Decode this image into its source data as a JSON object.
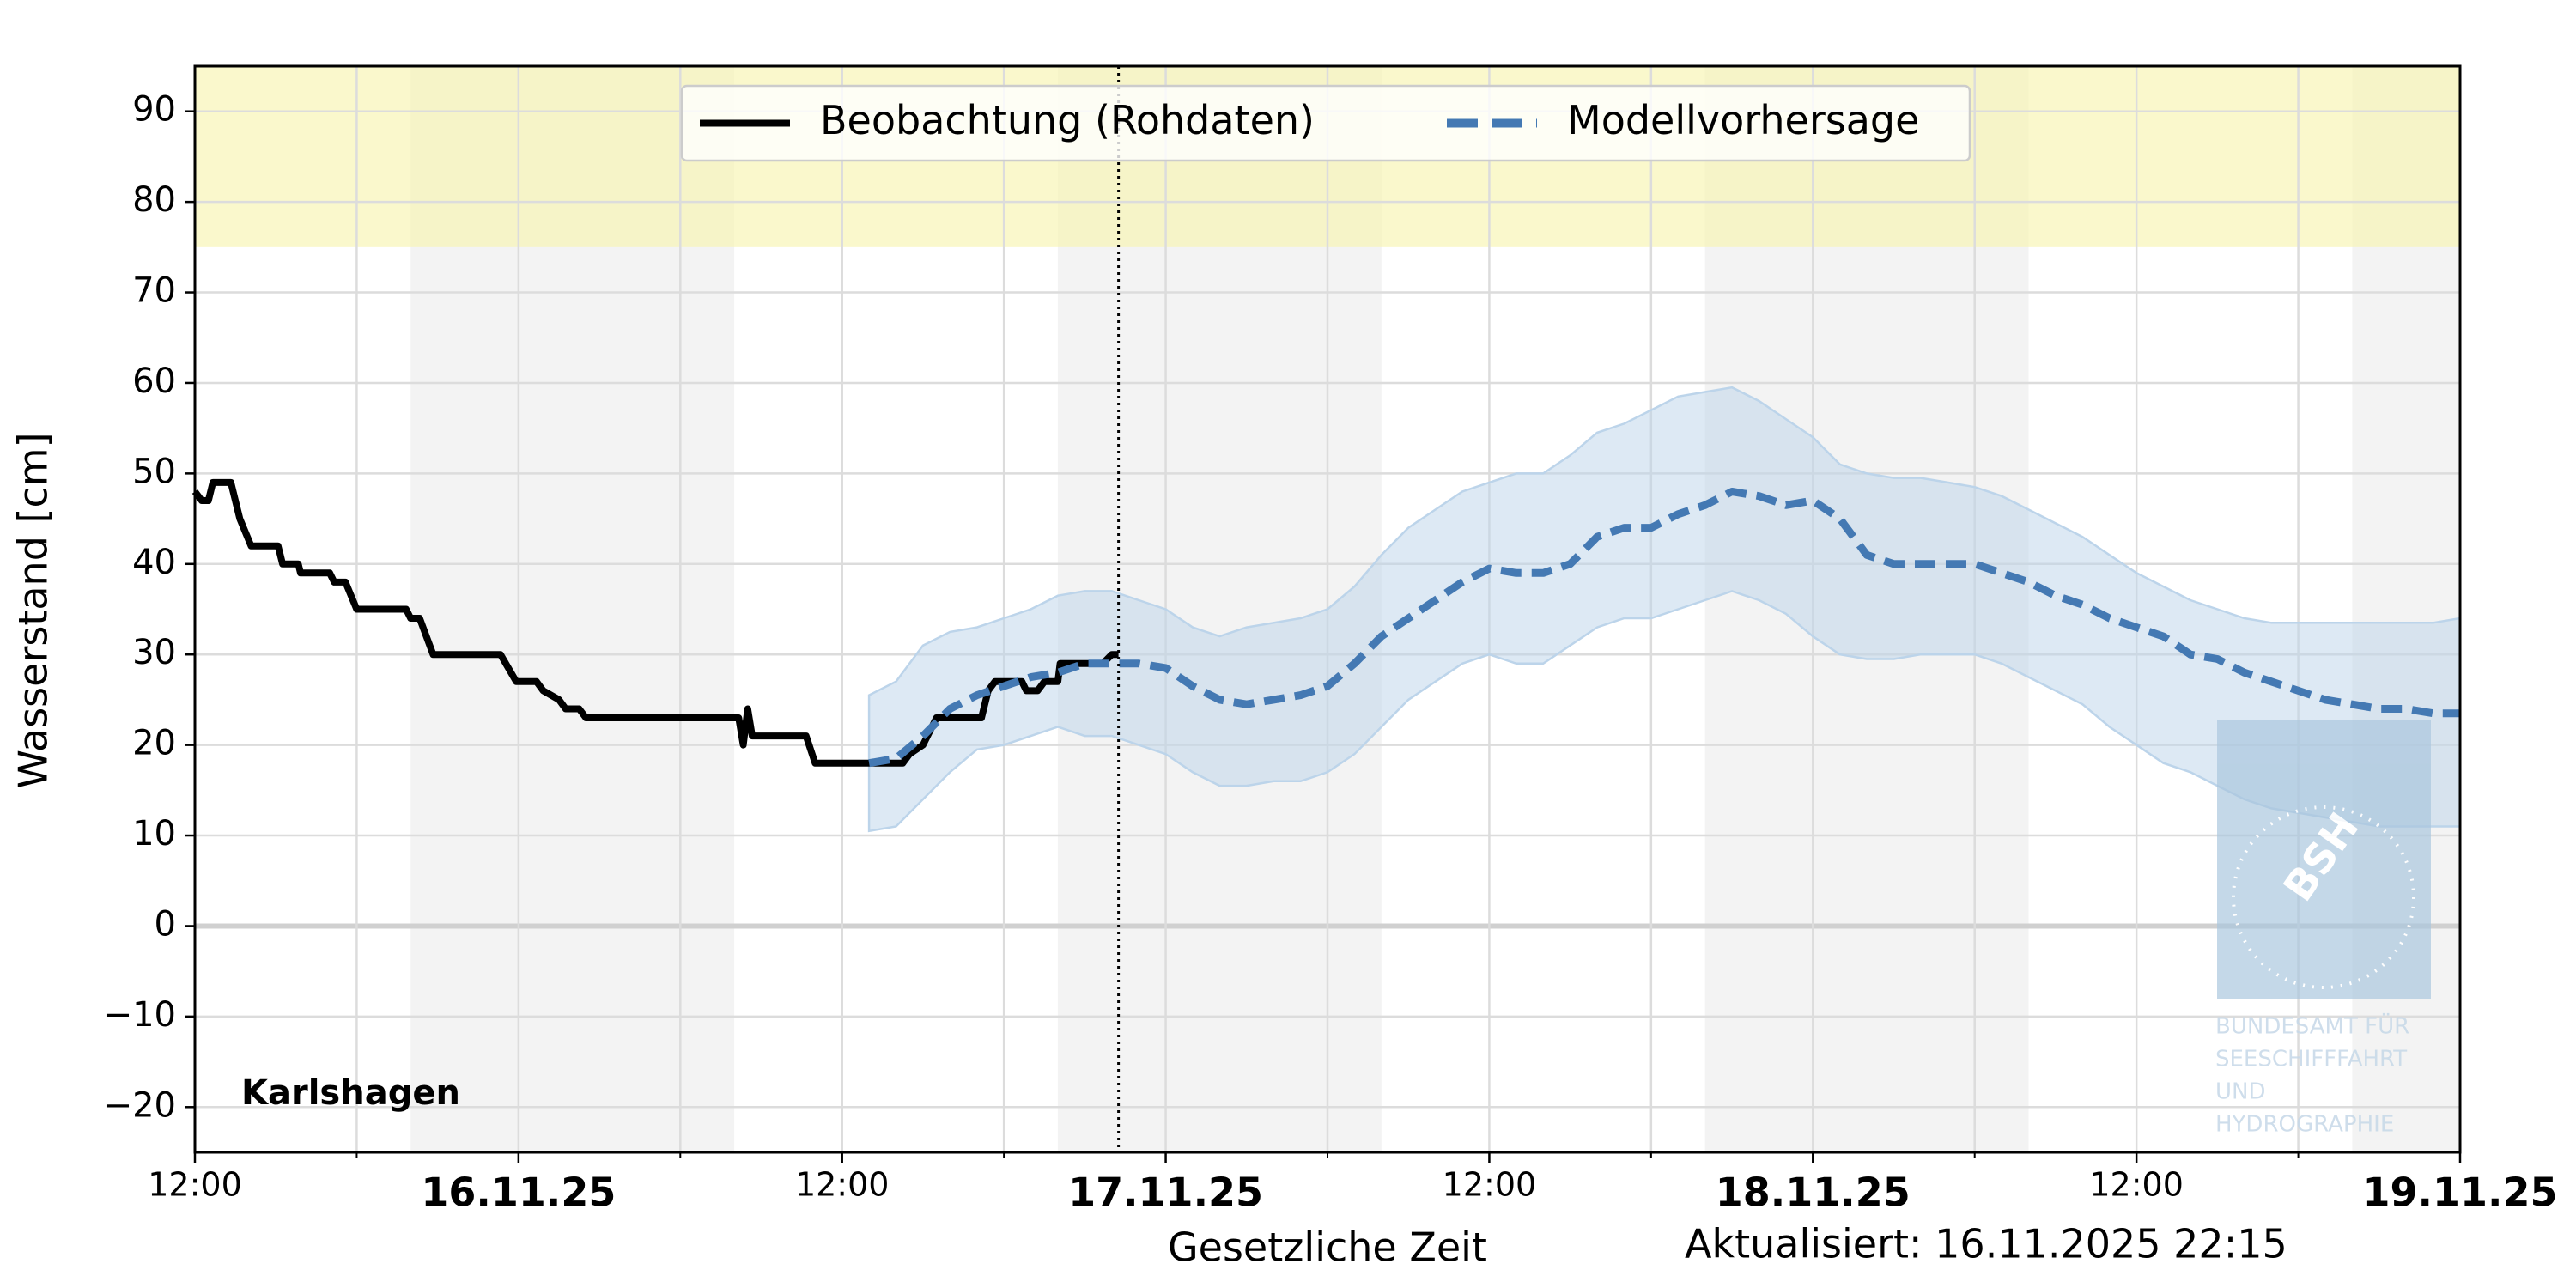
{
  "chart_data": {
    "type": "line",
    "station": "Karlshagen",
    "ylabel": "Wasserstand [cm]",
    "xlabel": "Gesetzliche Zeit",
    "updated": "Aktualisiert: 16.11.2025 22:15",
    "now": "2025-11-16T22:15",
    "ylim": [
      -25,
      95
    ],
    "yticks": [
      {
        "value": -20,
        "label": "−20"
      },
      {
        "value": -10,
        "label": "−10"
      },
      0,
      10,
      20,
      30,
      40,
      50,
      60,
      70,
      80,
      90
    ],
    "xlim": [
      "2025-11-15T12:00",
      "2025-11-19T00:00"
    ],
    "xticks": [
      {
        "value": "2025-11-15T12:00",
        "label": "12:00"
      },
      {
        "value": "2025-11-16T00:00",
        "label": "16.11.25"
      },
      {
        "value": "2025-11-16T12:00",
        "label": "12:00"
      },
      {
        "value": "2025-11-17T00:00",
        "label": "17.11.25"
      },
      {
        "value": "2025-11-17T12:00",
        "label": "12:00"
      },
      {
        "value": "2025-11-18T00:00",
        "label": "18.11.25"
      },
      {
        "value": "2025-11-18T12:00",
        "label": "12:00"
      },
      {
        "value": "2025-11-19T00:00",
        "label": "19.11.25"
      }
    ],
    "xminorticks": [
      "2025-11-15T18:00",
      "2025-11-16T06:00",
      "2025-11-16T18:00",
      "2025-11-17T06:00",
      "2025-11-17T18:00",
      "2025-11-18T06:00",
      "2025-11-18T18:00"
    ],
    "grid": true,
    "legend": "top",
    "highlight_band": {
      "from": 75,
      "to": 95,
      "color": "#f7f5b0"
    },
    "shaded_periods": {
      "color": "#f3f3f3",
      "periods": [
        [
          "2025-11-15T20:00",
          "2025-11-16T08:00"
        ],
        [
          "2025-11-16T20:00",
          "2025-11-17T08:00"
        ],
        [
          "2025-11-17T20:00",
          "2025-11-18T08:00"
        ],
        [
          "2025-11-18T20:00",
          "2025-11-19T00:00"
        ]
      ]
    },
    "logo": {
      "abbr": "BSH",
      "lines": [
        "BUNDESAMT FÜR",
        "SEESCHIFFFAHRT",
        "UND",
        "HYDROGRAPHIE"
      ]
    },
    "series": [
      {
        "name": "Beobachtung (Rohdaten)",
        "color": "#000000",
        "style": "solid",
        "x": [
          "2025-11-15T12:00",
          "2025-11-15T12:15",
          "2025-11-15T12:30",
          "2025-11-15T12:40",
          "2025-11-15T13:20",
          "2025-11-15T13:40",
          "2025-11-15T14:05",
          "2025-11-15T15:05",
          "2025-11-15T15:15",
          "2025-11-15T15:50",
          "2025-11-15T15:55",
          "2025-11-15T17:00",
          "2025-11-15T17:10",
          "2025-11-15T17:35",
          "2025-11-15T18:00",
          "2025-11-15T19:50",
          "2025-11-15T20:00",
          "2025-11-15T20:20",
          "2025-11-15T20:50",
          "2025-11-15T23:20",
          "2025-11-15T23:55",
          "2025-11-16T00:40",
          "2025-11-16T00:55",
          "2025-11-16T01:30",
          "2025-11-16T01:45",
          "2025-11-16T02:15",
          "2025-11-16T02:30",
          "2025-11-16T08:10",
          "2025-11-16T08:20",
          "2025-11-16T08:30",
          "2025-11-16T08:40",
          "2025-11-16T10:40",
          "2025-11-16T11:00",
          "2025-11-16T14:15",
          "2025-11-16T14:30",
          "2025-11-16T15:00",
          "2025-11-16T15:30",
          "2025-11-16T17:10",
          "2025-11-16T17:25",
          "2025-11-16T17:40",
          "2025-11-16T18:40",
          "2025-11-16T18:50",
          "2025-11-16T19:15",
          "2025-11-16T19:30",
          "2025-11-16T20:00",
          "2025-11-16T20:05",
          "2025-11-16T21:40",
          "2025-11-16T22:00",
          "2025-11-16T22:15"
        ],
        "values": [
          48,
          47,
          47,
          49,
          49,
          45,
          42,
          42,
          40,
          40,
          39,
          39,
          38,
          38,
          35,
          35,
          34,
          34,
          30,
          30,
          27,
          27,
          26,
          25,
          24,
          24,
          23,
          23,
          20,
          24,
          21,
          21,
          18,
          18,
          19,
          20,
          23,
          23,
          26,
          27,
          27,
          26,
          26,
          27,
          27,
          29,
          29,
          30,
          30
        ]
      },
      {
        "name": "Modellvorhersage",
        "color": "#4479b3",
        "style": "dashed",
        "band_color": "#bcd4ea",
        "x": [
          "2025-11-16T13:00",
          "2025-11-16T14:00",
          "2025-11-16T15:00",
          "2025-11-16T16:00",
          "2025-11-16T17:00",
          "2025-11-16T18:00",
          "2025-11-16T19:00",
          "2025-11-16T20:00",
          "2025-11-16T21:00",
          "2025-11-16T22:00",
          "2025-11-16T23:00",
          "2025-11-17T00:00",
          "2025-11-17T01:00",
          "2025-11-17T02:00",
          "2025-11-17T03:00",
          "2025-11-17T04:00",
          "2025-11-17T05:00",
          "2025-11-17T06:00",
          "2025-11-17T07:00",
          "2025-11-17T08:00",
          "2025-11-17T09:00",
          "2025-11-17T10:00",
          "2025-11-17T11:00",
          "2025-11-17T12:00",
          "2025-11-17T13:00",
          "2025-11-17T14:00",
          "2025-11-17T15:00",
          "2025-11-17T16:00",
          "2025-11-17T17:00",
          "2025-11-17T18:00",
          "2025-11-17T19:00",
          "2025-11-17T20:00",
          "2025-11-17T21:00",
          "2025-11-17T22:00",
          "2025-11-17T23:00",
          "2025-11-18T00:00",
          "2025-11-18T01:00",
          "2025-11-18T02:00",
          "2025-11-18T03:00",
          "2025-11-18T04:00",
          "2025-11-18T05:00",
          "2025-11-18T06:00",
          "2025-11-18T07:00",
          "2025-11-18T08:00",
          "2025-11-18T09:00",
          "2025-11-18T10:00",
          "2025-11-18T11:00",
          "2025-11-18T12:00",
          "2025-11-18T13:00",
          "2025-11-18T14:00",
          "2025-11-18T15:00",
          "2025-11-18T16:00",
          "2025-11-18T17:00",
          "2025-11-18T18:00",
          "2025-11-18T19:00",
          "2025-11-18T20:00",
          "2025-11-18T21:00",
          "2025-11-18T22:00",
          "2025-11-18T23:00",
          "2025-11-19T00:00"
        ],
        "values": [
          18,
          18.5,
          21,
          24,
          25.5,
          26.5,
          27.5,
          28,
          29,
          29,
          29,
          28.5,
          26.5,
          25,
          24.5,
          25,
          25.5,
          26.5,
          29,
          32,
          34,
          36,
          38,
          39.5,
          39,
          39,
          40,
          43,
          44,
          44,
          45.5,
          46.5,
          48,
          47.5,
          46.5,
          47,
          45,
          41,
          40,
          40,
          40,
          40,
          39,
          38,
          36.5,
          35.5,
          34,
          33,
          32,
          30,
          29.5,
          28,
          27,
          26,
          25,
          24.5,
          24,
          24,
          23.5,
          23.5
        ],
        "lower": [
          10.5,
          11,
          14,
          17,
          19.5,
          20,
          21,
          22,
          21,
          21,
          20,
          19,
          17,
          15.5,
          15.5,
          16,
          16,
          17,
          19,
          22,
          25,
          27,
          29,
          30,
          29,
          29,
          31,
          33,
          34,
          34,
          35,
          36,
          37,
          36,
          34.5,
          32,
          30,
          29.5,
          29.5,
          30,
          30,
          30,
          29,
          27.5,
          26,
          24.5,
          22,
          20,
          18,
          17,
          15.5,
          14,
          13,
          12.5,
          12,
          11.5,
          11,
          11,
          11,
          11
        ],
        "upper": [
          25.5,
          27,
          31,
          32.5,
          33,
          34,
          35,
          36.5,
          37,
          37,
          36,
          35,
          33,
          32,
          33,
          33.5,
          34,
          35,
          37.5,
          41,
          44,
          46,
          48,
          49,
          50,
          50,
          52,
          54.5,
          55.5,
          57,
          58.5,
          59,
          59.5,
          58,
          56,
          54,
          51,
          50,
          49.5,
          49.5,
          49,
          48.5,
          47.5,
          46,
          44.5,
          43,
          41,
          39,
          37.5,
          36,
          35,
          34,
          33.5,
          33.5,
          33.5,
          33.5,
          33.5,
          33.5,
          33.5,
          34
        ]
      }
    ]
  }
}
